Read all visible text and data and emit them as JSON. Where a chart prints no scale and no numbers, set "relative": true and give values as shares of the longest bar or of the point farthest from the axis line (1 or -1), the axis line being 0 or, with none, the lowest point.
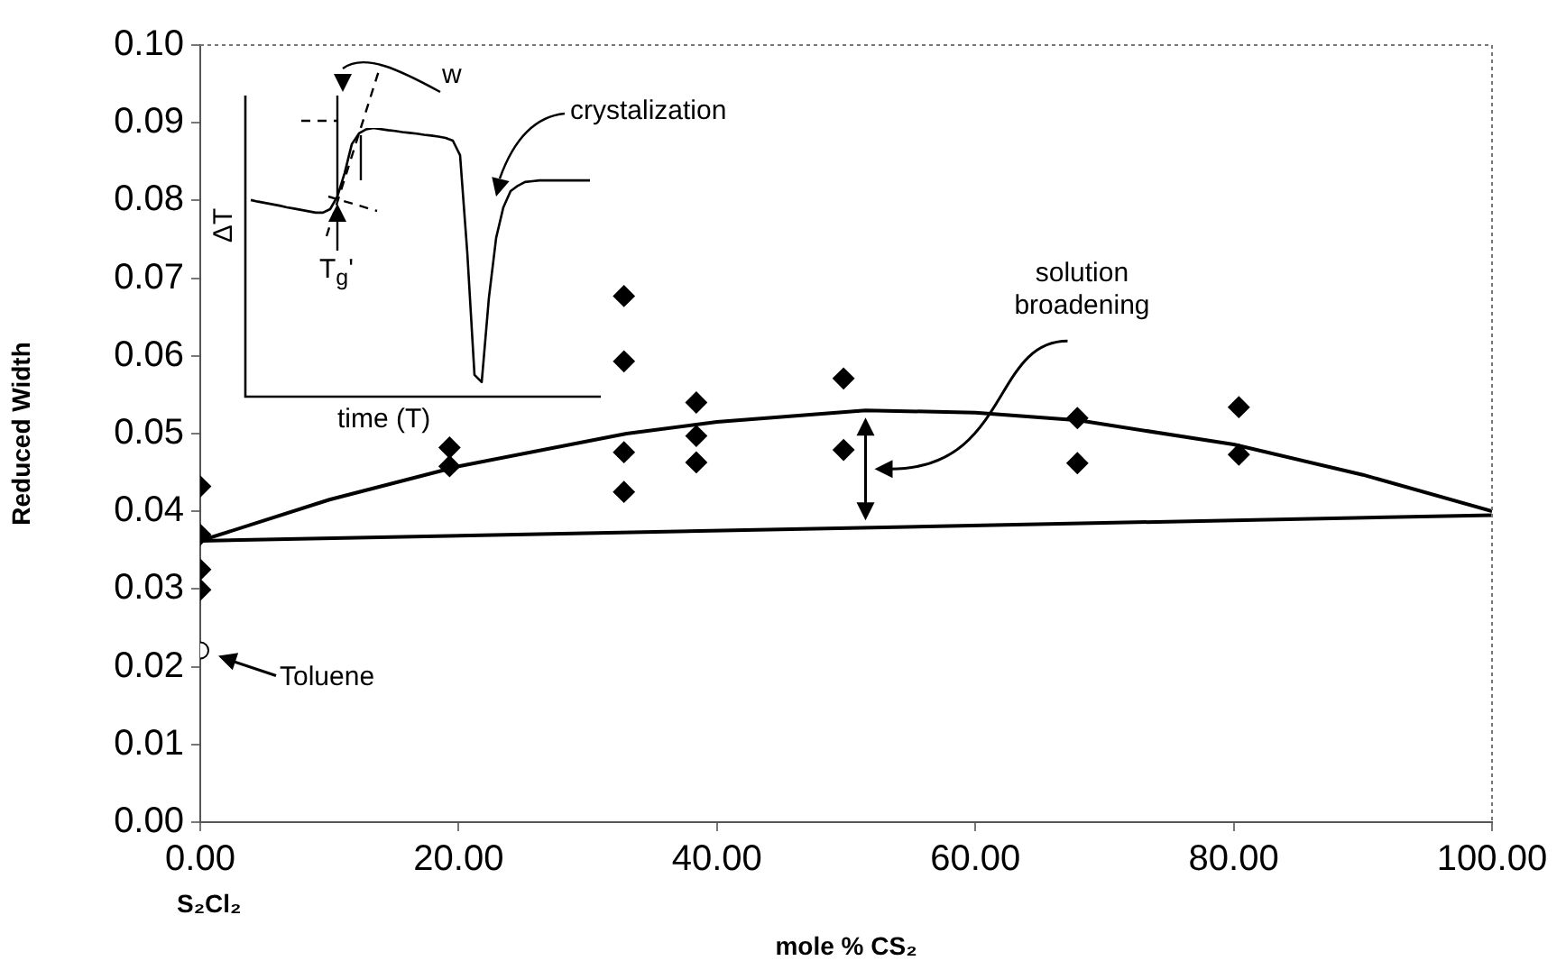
{
  "chart_data": [
    {
      "type": "scatter",
      "xlabel": "mole % CS₂",
      "ylabel": "Reduced Width",
      "xlim": [
        0,
        100
      ],
      "ylim": [
        0,
        0.1
      ],
      "xticks": [
        {
          "value": 0,
          "label": "0.00"
        },
        {
          "value": 20,
          "label": "20.00"
        },
        {
          "value": 40,
          "label": "40.00"
        },
        {
          "value": 60,
          "label": "60.00"
        },
        {
          "value": 80,
          "label": "80.00"
        },
        {
          "value": 100,
          "label": "100.00"
        }
      ],
      "yticks": [
        {
          "value": 0,
          "label": "0.00"
        },
        {
          "value": 0.01,
          "label": "0.01"
        },
        {
          "value": 0.02,
          "label": "0.02"
        },
        {
          "value": 0.03,
          "label": "0.03"
        },
        {
          "value": 0.04,
          "label": "0.04"
        },
        {
          "value": 0.05,
          "label": "0.05"
        },
        {
          "value": 0.06,
          "label": "0.06"
        },
        {
          "value": 0.07,
          "label": "0.07"
        },
        {
          "value": 0.08,
          "label": "0.08"
        },
        {
          "value": 0.09,
          "label": "0.09"
        },
        {
          "value": 0.1,
          "label": "0.10"
        }
      ],
      "grid": false,
      "legend": false,
      "series": [
        {
          "type": "scatter",
          "marker": "diamond",
          "color": "#000000",
          "x": [
            0,
            0,
            0,
            0,
            19.3,
            19.3,
            32.8,
            32.8,
            32.8,
            32.8,
            38.4,
            38.4,
            38.4,
            49.8,
            49.8,
            67.9,
            67.9,
            80.4,
            80.4
          ],
          "values": [
            0.0432,
            0.037,
            0.0325,
            0.0299,
            0.0482,
            0.0458,
            0.0677,
            0.0593,
            0.0476,
            0.0425,
            0.054,
            0.0497,
            0.0463,
            0.0571,
            0.0479,
            0.052,
            0.0462,
            0.0534,
            0.0473
          ]
        },
        {
          "type": "scatter",
          "marker": "circle",
          "color": "#ffffff",
          "x": [
            0
          ],
          "values": [
            0.0221
          ]
        },
        {
          "type": "line",
          "marker": "none",
          "line_style": "solid",
          "color": "#000000",
          "x": [
            0,
            10,
            20,
            33,
            40,
            51.5,
            60,
            68,
            80,
            90,
            100
          ],
          "values": [
            0.0362,
            0.0415,
            0.0458,
            0.05,
            0.0515,
            0.053,
            0.0527,
            0.0517,
            0.0486,
            0.0447,
            0.04
          ]
        },
        {
          "type": "line",
          "marker": "none",
          "line_style": "solid",
          "color": "#000000",
          "x": [
            0,
            100
          ],
          "values": [
            0.0362,
            0.0395
          ]
        }
      ],
      "annotations": [
        "solution broadening",
        "S₂Cl₂",
        {
          "text": "Toluene",
          "x": 0,
          "y": 0.0221
        }
      ]
    },
    {
      "type": "line",
      "relative": true,
      "xlabel": "time (T)",
      "ylabel": "ΔT",
      "legend": false,
      "marker": "none",
      "line_style": "solid",
      "categories": [
        null,
        null,
        null,
        null,
        null,
        null,
        null,
        null,
        null,
        null,
        null,
        null,
        null,
        null,
        null,
        null,
        null,
        null,
        null,
        null,
        null,
        null,
        null,
        null,
        null,
        null,
        null,
        null,
        null,
        null,
        null,
        null,
        null,
        null,
        null,
        null,
        null,
        null,
        null,
        null,
        null,
        null,
        null,
        null,
        null,
        null,
        null,
        null
      ],
      "series": [
        {
          "color": "#000000",
          "values": [
            0.732,
            0.726,
            0.721,
            0.716,
            0.711,
            0.705,
            0.7,
            0.695,
            0.69,
            0.685,
            0.685,
            0.698,
            0.745,
            0.832,
            0.94,
            0.98,
            0.995,
            1,
            0.996,
            0.992,
            0.989,
            0.985,
            0.982,
            0.979,
            0.975,
            0.972,
            0.968,
            0.963,
            0.953,
            0.899,
            0.537,
            0.081,
            0.054,
            0.369,
            0.591,
            0.705,
            0.765,
            0.785,
            0.799,
            0.802,
            0.805,
            0.805,
            0.805,
            0.805,
            0.805,
            0.805,
            0.805,
            0.805
          ]
        }
      ],
      "annotations": [
        "w",
        "crystalization",
        "T$_{g}$'"
      ]
    }
  ]
}
